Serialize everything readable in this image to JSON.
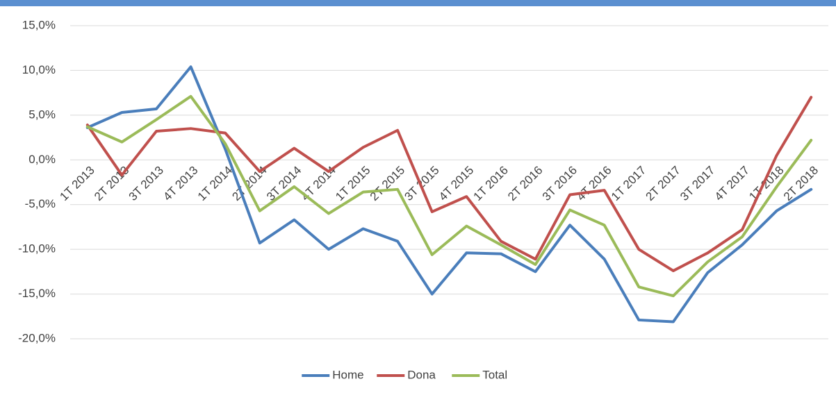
{
  "chart_data": {
    "type": "line",
    "categories": [
      "1T 2013",
      "2T 2013",
      "3T 2013",
      "4T 2013",
      "1T 2014",
      "2T 2014",
      "3T 2014",
      "4T 2014",
      "1T 2015",
      "2T 2015",
      "3T 2015",
      "4T 2015",
      "1T 2016",
      "2T 2016",
      "3T 2016",
      "4T 2016",
      "1T 2017",
      "2T 2017",
      "3T 2017",
      "4T 2017",
      "1T 2018",
      "2T 2018"
    ],
    "series": [
      {
        "name": "Home",
        "color": "#4a7ebb",
        "values": [
          3.6,
          5.3,
          5.7,
          10.4,
          1.2,
          -9.3,
          -6.7,
          -10.0,
          -7.7,
          -9.1,
          -15.0,
          -10.4,
          -10.5,
          -12.5,
          -7.3,
          -11.1,
          -17.9,
          -18.1,
          -12.6,
          -9.5,
          -5.7,
          -3.3
        ]
      },
      {
        "name": "Dona",
        "color": "#c0504d",
        "values": [
          3.9,
          -1.7,
          3.2,
          3.5,
          3.0,
          -1.3,
          1.3,
          -1.3,
          1.4,
          3.3,
          -5.8,
          -4.1,
          -9.1,
          -11.1,
          -3.9,
          -3.4,
          -10.0,
          -12.4,
          -10.4,
          -7.8,
          0.5,
          7.0
        ]
      },
      {
        "name": "Total",
        "color": "#9bbb59",
        "values": [
          3.7,
          2.0,
          4.5,
          7.1,
          1.8,
          -5.7,
          -3.0,
          -6.0,
          -3.6,
          -3.3,
          -10.6,
          -7.4,
          -9.5,
          -11.7,
          -5.6,
          -7.3,
          -14.2,
          -15.2,
          -11.4,
          -8.6,
          -3.0,
          2.2
        ]
      }
    ],
    "ylim": [
      -20,
      15
    ],
    "yticks": [
      {
        "value": -20,
        "label": "-20,0%"
      },
      {
        "value": -15,
        "label": "-15,0%"
      },
      {
        "value": -10,
        "label": "-10,0%"
      },
      {
        "value": -5,
        "label": "-5,0%"
      },
      {
        "value": 0,
        "label": "0,0%"
      },
      {
        "value": 5,
        "label": "5,0%"
      },
      {
        "value": 10,
        "label": "10,0%"
      },
      {
        "value": 15,
        "label": "15,0%"
      }
    ],
    "grid": true,
    "legend": "bottom"
  }
}
